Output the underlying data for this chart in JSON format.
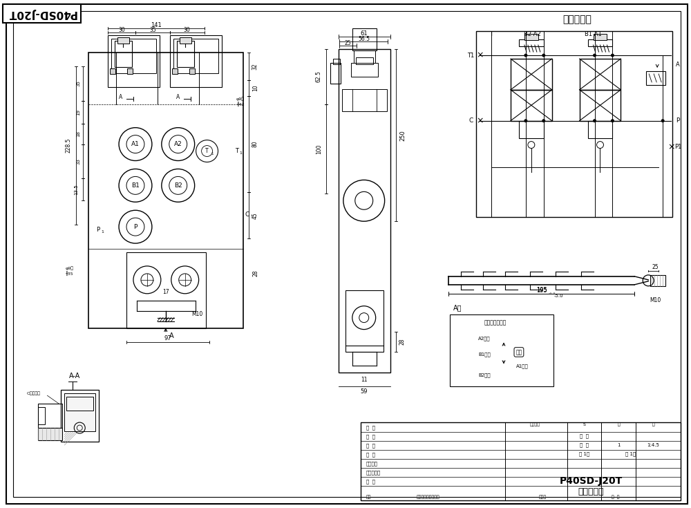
{
  "title": "P40SD-J20T",
  "title_chinese": "二联多路阀",
  "hydraulic_title": "液压原理图",
  "bg_color": "#ffffff",
  "line_color": "#000000",
  "note1": "P40SD-J20T",
  "note2": "二联多路阀"
}
